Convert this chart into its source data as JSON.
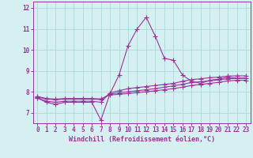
{
  "xlabel": "Windchill (Refroidissement éolien,°C)",
  "x": [
    0,
    1,
    2,
    3,
    4,
    5,
    6,
    7,
    8,
    9,
    10,
    11,
    12,
    13,
    14,
    15,
    16,
    17,
    18,
    19,
    20,
    21,
    22,
    23
  ],
  "line1": [
    7.7,
    7.5,
    7.4,
    7.5,
    7.5,
    7.5,
    7.5,
    6.65,
    7.9,
    8.8,
    10.2,
    11.0,
    11.55,
    10.65,
    9.6,
    9.5,
    8.8,
    8.5,
    8.4,
    8.55,
    8.6,
    8.7,
    8.65,
    8.65
  ],
  "line2": [
    7.7,
    7.55,
    7.5,
    7.55,
    7.55,
    7.55,
    7.55,
    7.5,
    7.95,
    8.05,
    8.15,
    8.2,
    8.25,
    8.3,
    8.35,
    8.4,
    8.5,
    8.58,
    8.62,
    8.67,
    8.7,
    8.75,
    8.76,
    8.76
  ],
  "line3": [
    7.75,
    7.65,
    7.62,
    7.65,
    7.65,
    7.65,
    7.65,
    7.63,
    7.9,
    7.95,
    8.0,
    8.05,
    8.1,
    8.15,
    8.22,
    8.28,
    8.36,
    8.44,
    8.48,
    8.52,
    8.57,
    8.62,
    8.64,
    8.64
  ],
  "line4": [
    7.78,
    7.68,
    7.65,
    7.68,
    7.68,
    7.68,
    7.68,
    7.66,
    7.85,
    7.88,
    7.92,
    7.96,
    8.0,
    8.05,
    8.1,
    8.15,
    8.22,
    8.3,
    8.35,
    8.4,
    8.45,
    8.52,
    8.55,
    8.55
  ],
  "line_color": "#993399",
  "bg_color": "#d5f0f0",
  "grid_color": "#aadada",
  "ylim": [
    6.5,
    12.3
  ],
  "yticks": [
    7,
    8,
    9,
    10,
    11,
    12
  ],
  "xticks": [
    0,
    1,
    2,
    3,
    4,
    5,
    6,
    7,
    8,
    9,
    10,
    11,
    12,
    13,
    14,
    15,
    16,
    17,
    18,
    19,
    20,
    21,
    22,
    23
  ],
  "tick_fontsize": 5.5,
  "label_fontsize": 6.0,
  "markersize": 2.0,
  "linewidth": 0.8
}
